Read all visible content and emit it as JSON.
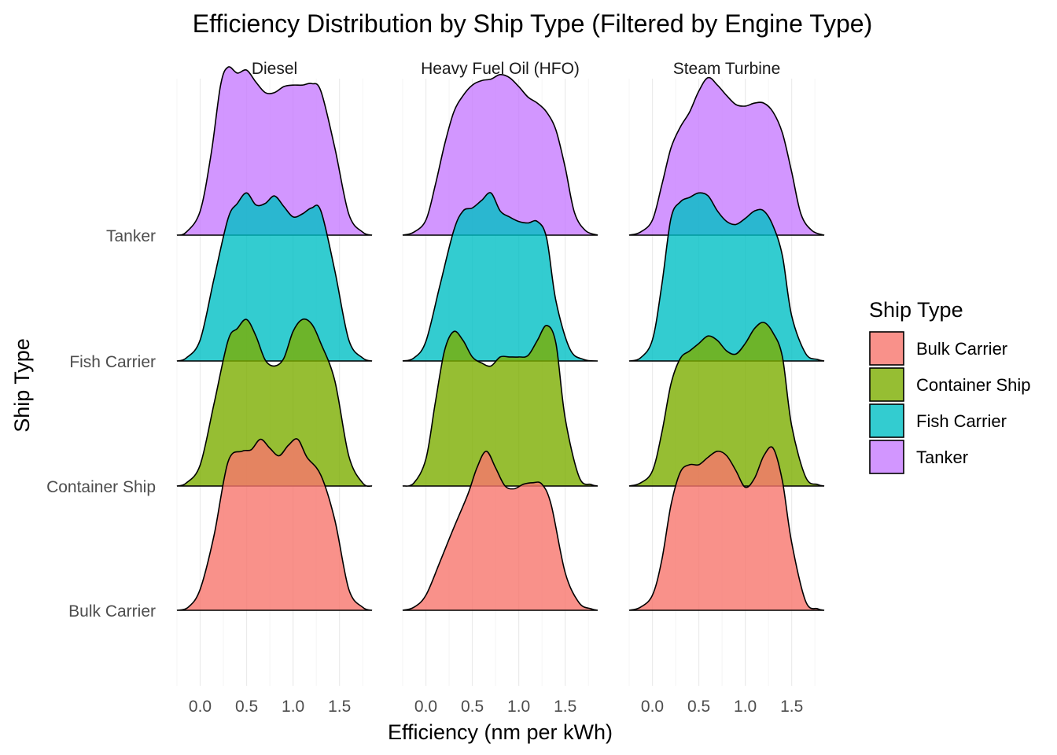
{
  "chart_data": {
    "type": "ridgeline-density",
    "title": "Efficiency Distribution by Ship Type (Filtered by Engine Type)",
    "xlabel": "Efficiency (nm per kWh)",
    "ylabel": "Ship Type",
    "xlim": [
      -0.25,
      1.85
    ],
    "x_ticks": [
      0.0,
      0.5,
      1.0,
      1.5
    ],
    "x_tick_labels": [
      "0.0",
      "0.5",
      "1.0",
      "1.5"
    ],
    "grid": true,
    "legend": {
      "title": "Ship Type",
      "position": "right"
    },
    "categories": [
      "Bulk Carrier",
      "Container Ship",
      "Fish Carrier",
      "Tanker"
    ],
    "colors": {
      "Bulk Carrier": "#F8766D",
      "Container Ship": "#7CAE00",
      "Fish Carrier": "#00BFC4",
      "Tanker": "#C77CFF"
    },
    "ridge_scale": 1.2,
    "panels": [
      {
        "name": "Diesel",
        "series": [
          {
            "name": "Bulk Carrier",
            "x": [
              -0.25,
              -0.13,
              0.0,
              0.15,
              0.3,
              0.45,
              0.55,
              0.65,
              0.75,
              0.85,
              0.95,
              1.05,
              1.15,
              1.3,
              1.45,
              1.6,
              1.75,
              1.85
            ],
            "density": [
              0.0,
              0.02,
              0.14,
              0.5,
              0.99,
              1.06,
              1.07,
              1.14,
              1.08,
              1.03,
              1.1,
              1.14,
              1.02,
              0.9,
              0.6,
              0.14,
              0.02,
              0.0
            ]
          },
          {
            "name": "Container Ship",
            "x": [
              -0.25,
              -0.15,
              0.0,
              0.15,
              0.3,
              0.4,
              0.5,
              0.6,
              0.7,
              0.8,
              0.9,
              1.0,
              1.1,
              1.2,
              1.3,
              1.45,
              1.6,
              1.75,
              1.85
            ],
            "density": [
              0.0,
              0.02,
              0.14,
              0.55,
              0.97,
              1.05,
              1.11,
              1.0,
              0.84,
              0.8,
              0.85,
              1.03,
              1.11,
              1.08,
              0.95,
              0.7,
              0.2,
              0.02,
              0.0
            ]
          },
          {
            "name": "Fish Carrier",
            "x": [
              -0.25,
              -0.15,
              0.0,
              0.15,
              0.3,
              0.4,
              0.5,
              0.6,
              0.7,
              0.8,
              0.9,
              1.0,
              1.1,
              1.2,
              1.3,
              1.45,
              1.6,
              1.75,
              1.85
            ],
            "density": [
              0.0,
              0.02,
              0.14,
              0.55,
              0.95,
              1.05,
              1.12,
              1.04,
              1.05,
              1.1,
              1.03,
              0.96,
              0.98,
              1.02,
              1.0,
              0.6,
              0.14,
              0.02,
              0.0
            ]
          },
          {
            "name": "Tanker",
            "x": [
              -0.25,
              -0.15,
              0.0,
              0.12,
              0.22,
              0.3,
              0.4,
              0.5,
              0.6,
              0.7,
              0.8,
              0.9,
              1.0,
              1.1,
              1.2,
              1.3,
              1.45,
              1.6,
              1.75,
              1.85
            ],
            "density": [
              0.0,
              0.02,
              0.16,
              0.55,
              1.0,
              1.12,
              1.08,
              1.1,
              1.02,
              0.95,
              0.95,
              0.99,
              1.0,
              1.0,
              1.01,
              0.96,
              0.58,
              0.14,
              0.02,
              0.0
            ]
          }
        ]
      },
      {
        "name": "Heavy Fuel Oil (HFO)",
        "series": [
          {
            "name": "Bulk Carrier",
            "x": [
              -0.25,
              -0.13,
              0.0,
              0.15,
              0.3,
              0.45,
              0.55,
              0.65,
              0.75,
              0.85,
              0.95,
              1.05,
              1.15,
              1.25,
              1.35,
              1.5,
              1.65,
              1.78,
              1.85
            ],
            "density": [
              0.0,
              0.02,
              0.1,
              0.32,
              0.55,
              0.77,
              0.95,
              1.06,
              0.95,
              0.83,
              0.81,
              0.84,
              0.85,
              0.84,
              0.7,
              0.25,
              0.05,
              0.01,
              0.0
            ]
          },
          {
            "name": "Container Ship",
            "x": [
              -0.25,
              -0.13,
              0.0,
              0.1,
              0.2,
              0.3,
              0.4,
              0.5,
              0.6,
              0.7,
              0.8,
              0.9,
              1.0,
              1.1,
              1.2,
              1.3,
              1.4,
              1.5,
              1.65,
              1.78,
              1.85
            ],
            "density": [
              0.0,
              0.02,
              0.18,
              0.55,
              0.9,
              1.03,
              0.97,
              0.86,
              0.82,
              0.8,
              0.86,
              0.86,
              0.86,
              0.87,
              0.97,
              1.07,
              0.95,
              0.45,
              0.06,
              0.01,
              0.0
            ]
          },
          {
            "name": "Fish Carrier",
            "x": [
              -0.25,
              -0.13,
              0.0,
              0.15,
              0.3,
              0.4,
              0.5,
              0.6,
              0.7,
              0.8,
              0.9,
              1.0,
              1.1,
              1.2,
              1.3,
              1.4,
              1.55,
              1.7,
              1.85
            ],
            "density": [
              0.0,
              0.02,
              0.13,
              0.5,
              0.87,
              1.0,
              1.02,
              1.07,
              1.12,
              1.0,
              0.96,
              0.93,
              0.92,
              0.93,
              0.82,
              0.4,
              0.08,
              0.01,
              0.0
            ]
          },
          {
            "name": "Tanker",
            "x": [
              -0.25,
              -0.13,
              0.0,
              0.1,
              0.2,
              0.3,
              0.4,
              0.5,
              0.6,
              0.7,
              0.8,
              0.9,
              1.0,
              1.1,
              1.2,
              1.3,
              1.4,
              1.5,
              1.6,
              1.72,
              1.85
            ],
            "density": [
              0.0,
              0.02,
              0.1,
              0.33,
              0.6,
              0.82,
              0.93,
              1.0,
              1.03,
              1.04,
              1.07,
              1.05,
              0.99,
              0.92,
              0.88,
              0.82,
              0.7,
              0.45,
              0.15,
              0.03,
              0.0
            ]
          }
        ]
      },
      {
        "name": "Steam Turbine",
        "series": [
          {
            "name": "Bulk Carrier",
            "x": [
              -0.25,
              -0.13,
              0.0,
              0.1,
              0.2,
              0.3,
              0.4,
              0.5,
              0.6,
              0.7,
              0.8,
              0.9,
              1.0,
              1.1,
              1.2,
              1.3,
              1.4,
              1.5,
              1.65,
              1.78,
              1.85
            ],
            "density": [
              0.0,
              0.02,
              0.1,
              0.33,
              0.7,
              0.92,
              0.97,
              0.97,
              1.02,
              1.06,
              1.03,
              0.93,
              0.82,
              0.88,
              1.03,
              1.08,
              0.86,
              0.45,
              0.06,
              0.01,
              0.0
            ]
          },
          {
            "name": "Container Ship",
            "x": [
              -0.25,
              -0.13,
              0.0,
              0.1,
              0.2,
              0.3,
              0.4,
              0.5,
              0.6,
              0.7,
              0.8,
              0.9,
              1.0,
              1.1,
              1.2,
              1.3,
              1.4,
              1.5,
              1.65,
              1.78,
              1.85
            ],
            "density": [
              0.0,
              0.02,
              0.1,
              0.35,
              0.68,
              0.85,
              0.9,
              0.95,
              1.0,
              0.97,
              0.9,
              0.88,
              0.95,
              1.05,
              1.09,
              1.02,
              0.86,
              0.4,
              0.06,
              0.01,
              0.0
            ]
          },
          {
            "name": "Fish Carrier",
            "x": [
              -0.25,
              -0.13,
              0.0,
              0.1,
              0.2,
              0.3,
              0.4,
              0.5,
              0.6,
              0.7,
              0.8,
              0.9,
              1.0,
              1.1,
              1.2,
              1.3,
              1.4,
              1.5,
              1.65,
              1.78,
              1.85
            ],
            "density": [
              0.0,
              0.02,
              0.14,
              0.5,
              0.95,
              1.06,
              1.09,
              1.12,
              1.1,
              1.0,
              0.93,
              0.91,
              0.95,
              1.0,
              1.0,
              0.9,
              0.7,
              0.3,
              0.05,
              0.01,
              0.0
            ]
          },
          {
            "name": "Tanker",
            "x": [
              -0.25,
              -0.13,
              0.0,
              0.1,
              0.2,
              0.3,
              0.4,
              0.5,
              0.6,
              0.7,
              0.8,
              0.9,
              1.0,
              1.1,
              1.2,
              1.3,
              1.4,
              1.5,
              1.6,
              1.72,
              1.85
            ],
            "density": [
              0.0,
              0.02,
              0.1,
              0.33,
              0.58,
              0.72,
              0.82,
              0.96,
              1.05,
              1.0,
              0.93,
              0.87,
              0.86,
              0.88,
              0.88,
              0.82,
              0.68,
              0.42,
              0.14,
              0.03,
              0.0
            ]
          }
        ]
      }
    ]
  }
}
